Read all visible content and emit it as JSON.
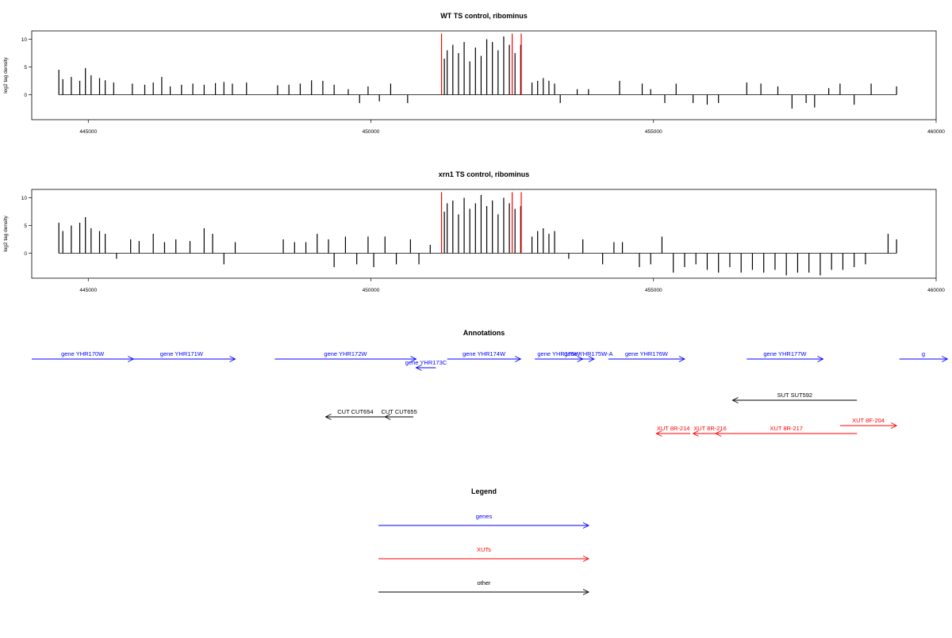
{
  "chart_data": [
    {
      "type": "bar",
      "title": "WT TS control, ribominus",
      "xlabel": "",
      "ylabel": "log2 tag density",
      "xlim": [
        444000,
        460000
      ],
      "ylim": [
        -4.5,
        11.5
      ],
      "xticks": [
        445000,
        450000,
        455000,
        460000
      ],
      "xtick_labels": [
        "445000",
        "450000",
        "455000",
        "460000"
      ],
      "yticks": [
        0,
        5,
        10
      ],
      "ytick_labels": [
        "0",
        "5",
        "10"
      ],
      "grid": false,
      "series": [
        {
          "color": "#000000",
          "x": [
            444480,
            444550,
            444700,
            444850,
            444950,
            445050,
            445200,
            445300,
            445450,
            445780,
            446000,
            446150,
            446300,
            446450,
            446650,
            446850,
            447050,
            447250,
            447400,
            447550,
            447800,
            448350,
            448550,
            448750,
            448950,
            449150,
            449350,
            449600,
            449800,
            449950,
            450150,
            450350,
            450650,
            451300,
            451350,
            451450,
            451550,
            451650,
            451750,
            451850,
            451950,
            452050,
            452150,
            452250,
            452350,
            452450,
            452550,
            452650,
            452850,
            452950,
            453050,
            453150,
            453250,
            453350,
            453650,
            453850,
            454400,
            454800,
            454950,
            455200,
            455400,
            455700,
            455950,
            456150,
            456650,
            456900,
            457200,
            457450,
            457700,
            457850,
            458100,
            458300,
            458550,
            458850,
            459300
          ],
          "values": [
            4.5,
            2.8,
            3.2,
            2.5,
            4.8,
            3.5,
            3.0,
            2.6,
            2.2,
            2.0,
            1.8,
            2.2,
            3.2,
            1.5,
            1.8,
            2.0,
            1.8,
            2.1,
            2.3,
            2.0,
            2.2,
            1.7,
            1.8,
            2.0,
            2.6,
            2.5,
            1.8,
            1.0,
            -1.5,
            1.5,
            -1.2,
            2.0,
            -1.5,
            6.5,
            8.0,
            9.0,
            7.5,
            9.5,
            6.0,
            8.5,
            7.0,
            10.0,
            9.5,
            8.0,
            10.5,
            9.0,
            7.5,
            9.0,
            2.2,
            2.5,
            3.0,
            2.5,
            2.0,
            -1.5,
            1.0,
            1.0,
            2.5,
            2.0,
            1.0,
            -1.5,
            2.0,
            -1.5,
            -1.8,
            -1.5,
            2.2,
            2.0,
            1.5,
            -2.5,
            -1.5,
            -2.3,
            1.2,
            2.0,
            -1.8,
            2.0,
            1.5
          ]
        },
        {
          "color": "#ff0000",
          "x": [
            451250,
            452500,
            452660
          ],
          "values": [
            11,
            11,
            11
          ]
        }
      ]
    },
    {
      "type": "bar",
      "title": "xrn1 TS control, ribominus",
      "xlabel": "",
      "ylabel": "log2 tag density",
      "xlim": [
        444000,
        460000
      ],
      "ylim": [
        -4.5,
        11.5
      ],
      "xticks": [
        445000,
        450000,
        455000,
        460000
      ],
      "xtick_labels": [
        "445000",
        "450000",
        "455000",
        "460000"
      ],
      "yticks": [
        0,
        5,
        10
      ],
      "ytick_labels": [
        "0",
        "5",
        "10"
      ],
      "grid": false,
      "series": [
        {
          "color": "#000000",
          "x": [
            444480,
            444550,
            444700,
            444850,
            444950,
            445050,
            445200,
            445300,
            445500,
            445750,
            445900,
            446150,
            446350,
            446550,
            446800,
            447050,
            447200,
            447400,
            447600,
            448450,
            448650,
            448850,
            449050,
            449250,
            449350,
            449550,
            449750,
            449950,
            450050,
            450250,
            450450,
            450700,
            450850,
            451050,
            451300,
            451350,
            451450,
            451550,
            451650,
            451750,
            451850,
            451950,
            452050,
            452150,
            452250,
            452350,
            452450,
            452550,
            452650,
            452850,
            452950,
            453050,
            453150,
            453250,
            453500,
            453750,
            454100,
            454300,
            454450,
            454750,
            454950,
            455150,
            455350,
            455550,
            455750,
            455950,
            456150,
            456350,
            456550,
            456750,
            456950,
            457150,
            457350,
            457550,
            457750,
            457950,
            458150,
            458350,
            458550,
            458750,
            459150,
            459300
          ],
          "values": [
            5.5,
            4.0,
            5.0,
            5.5,
            6.5,
            4.5,
            4.0,
            3.5,
            -1.0,
            2.5,
            2.2,
            3.5,
            2.0,
            2.5,
            2.2,
            4.5,
            3.5,
            -2.0,
            2.0,
            2.5,
            2.0,
            2.0,
            3.5,
            2.5,
            -2.5,
            3.0,
            -2.0,
            3.0,
            -2.5,
            3.0,
            -2.0,
            2.5,
            -2.0,
            1.5,
            7.5,
            9.0,
            9.5,
            7.0,
            10.0,
            8.0,
            9.0,
            10.5,
            8.5,
            9.5,
            7.0,
            10.0,
            9.0,
            8.0,
            8.5,
            3.0,
            4.0,
            4.5,
            3.5,
            4.0,
            -1.0,
            2.5,
            -2.0,
            2.0,
            2.0,
            -2.5,
            -2.0,
            3.0,
            -3.5,
            -2.5,
            -2.0,
            -3.0,
            -3.5,
            -2.5,
            -3.5,
            -3.0,
            -3.5,
            -3.0,
            -4.0,
            -3.5,
            -3.5,
            -4.0,
            -3.0,
            -3.0,
            -2.5,
            -2.0,
            3.5,
            2.5
          ]
        },
        {
          "color": "#ff0000",
          "x": [
            451250,
            452500,
            452660
          ],
          "values": [
            11,
            11,
            11
          ]
        }
      ]
    }
  ],
  "annotations": {
    "title": "Annotations",
    "genes": [
      {
        "label": "gene YHR170W",
        "start": 444000,
        "end": 445800,
        "dir": "right",
        "row": 0,
        "color": "#0000ff"
      },
      {
        "label": "gene YHR171W",
        "start": 445700,
        "end": 447600,
        "dir": "right",
        "row": 0,
        "color": "#0000ff"
      },
      {
        "label": "gene YHR172W",
        "start": 448300,
        "end": 450800,
        "dir": "right",
        "row": 0,
        "color": "#0000ff"
      },
      {
        "label": "gene YHR173C",
        "start": 450800,
        "end": 451150,
        "dir": "left",
        "row": 1,
        "color": "#0000ff"
      },
      {
        "label": "gene YHR174W",
        "start": 451350,
        "end": 452650,
        "dir": "right",
        "row": 0,
        "color": "#0000ff"
      },
      {
        "label": "gene YHR175W",
        "start": 452900,
        "end": 453750,
        "dir": "right",
        "row": 0,
        "color": "#0000ff"
      },
      {
        "label": "gene YHR175W-A",
        "start": 453750,
        "end": 453950,
        "dir": "right",
        "row": 0,
        "color": "#0000ff"
      },
      {
        "label": "gene YHR176W",
        "start": 454200,
        "end": 455550,
        "dir": "right",
        "row": 0,
        "color": "#0000ff"
      },
      {
        "label": "gene YHR177W",
        "start": 456650,
        "end": 458000,
        "dir": "right",
        "row": 0,
        "color": "#0000ff"
      },
      {
        "label": "g",
        "start": 459350,
        "end": 460200,
        "dir": "right",
        "row": 0,
        "color": "#0000ff"
      }
    ],
    "sut": [
      {
        "label": "SUT SUT592",
        "start": 456400,
        "end": 458600,
        "dir": "left",
        "color": "#000000"
      }
    ],
    "cut": [
      {
        "label": "CUT CUT654",
        "start": 449200,
        "end": 450250,
        "dir": "left",
        "color": "#000000"
      },
      {
        "label": "CUT CUT655",
        "start": 450250,
        "end": 450750,
        "dir": "left",
        "color": "#000000"
      }
    ],
    "xut": [
      {
        "label": "XUT 8F-204",
        "start": 458300,
        "end": 459300,
        "dir": "right",
        "row": 0,
        "color": "#ff0000"
      },
      {
        "label": "XUT 8R-214",
        "start": 455050,
        "end": 455650,
        "dir": "left",
        "row": 1,
        "color": "#ff0000"
      },
      {
        "label": "XUT 8R-216",
        "start": 455700,
        "end": 456300,
        "dir": "left",
        "row": 1,
        "color": "#ff0000"
      },
      {
        "label": "XUT 8R-217",
        "start": 456100,
        "end": 458600,
        "dir": "left",
        "row": 1,
        "color": "#ff0000"
      }
    ]
  },
  "legend": {
    "title": "Legend",
    "items": [
      {
        "label": "genes",
        "color": "#0000ff"
      },
      {
        "label": "XUTs",
        "color": "#ff0000"
      },
      {
        "label": "other",
        "color": "#000000"
      }
    ]
  }
}
